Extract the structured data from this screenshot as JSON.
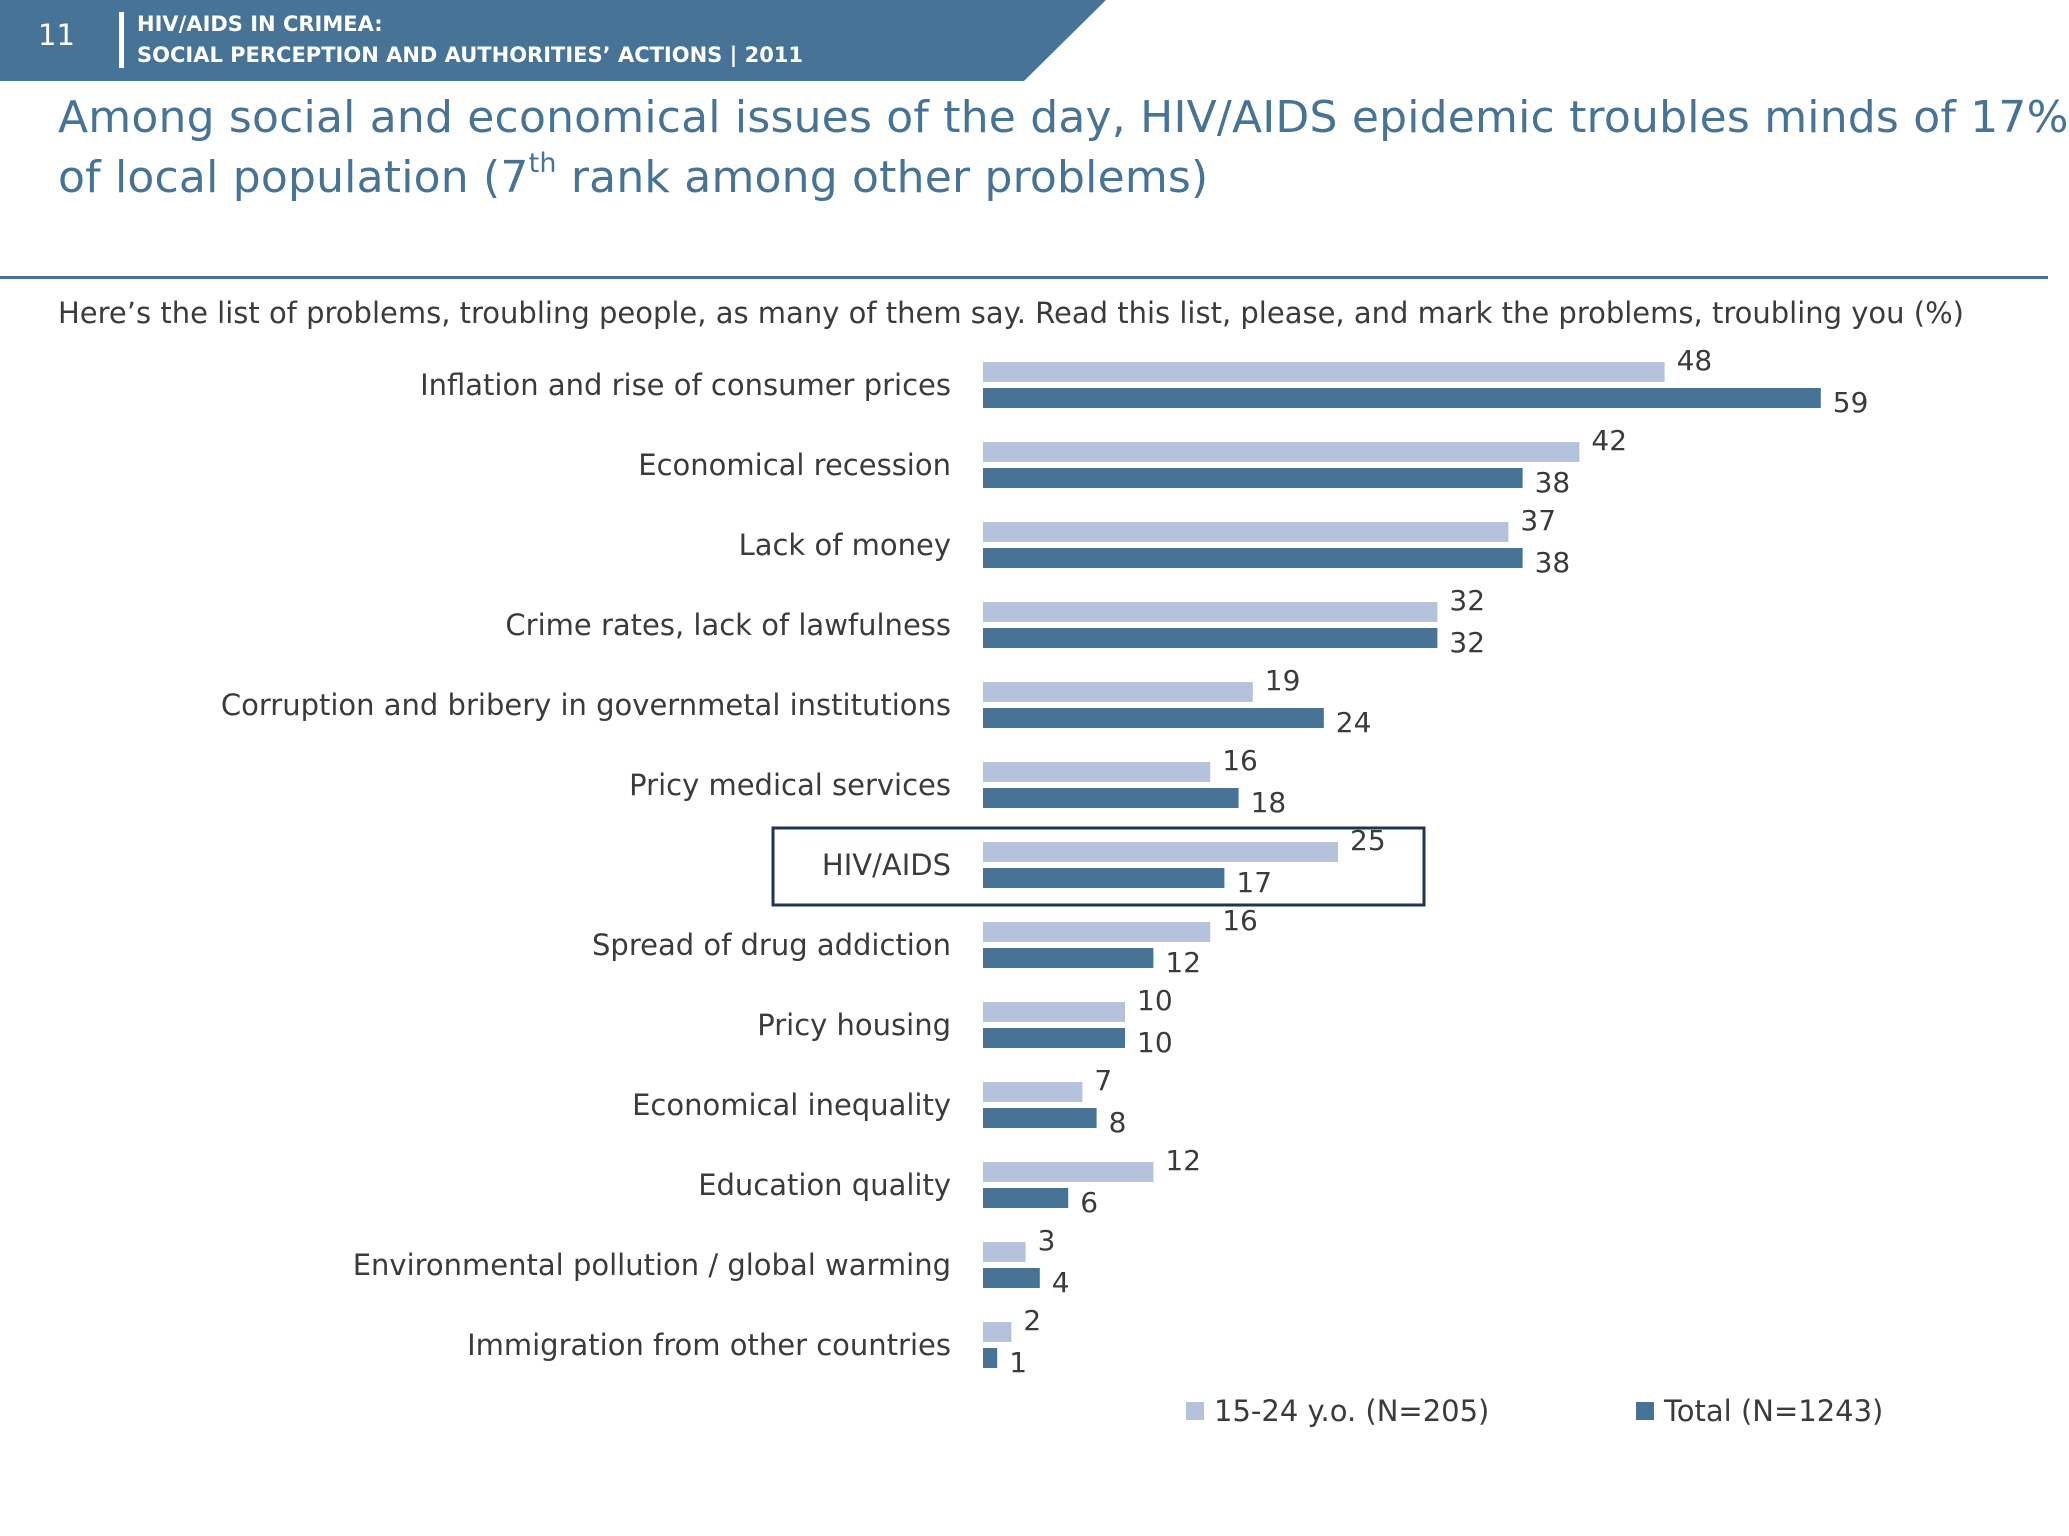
{
  "header": {
    "page_number": "11",
    "line1": "HIV/AIDS IN CRIMEA:",
    "line2": "SOCIAL PERCEPTION AND AUTHORITIES’ ACTIONS  |  2011"
  },
  "title": {
    "line1": "Among social and economical issues of the day, HIV/AIDS epidemic troubles minds  of 17%",
    "line2_before": "of local population (7",
    "line2_sup": "th",
    "line2_after": " rank among other problems)"
  },
  "question": "Here’s the list of problems, troubling people, as many of them say. Read this list, please, and mark the problems, troubling you (%)",
  "colors": {
    "header": "#477397",
    "series_young": "#b4c3db",
    "series_total": "#477397",
    "highlight_border": "#1f3550"
  },
  "chart_data": {
    "type": "bar",
    "orientation": "horizontal",
    "categories": [
      "Inflation and rise of consumer prices",
      "Economical recession",
      "Lack of money",
      "Crime rates, lack of lawfulness",
      "Corruption and bribery in governmetal institutions",
      "Pricy medical services",
      "HIV/AIDS",
      "Spread of drug addiction",
      "Pricy housing",
      "Economical inequality",
      "Education quality",
      "Environmental pollution / global warming",
      "Immigration from other countries"
    ],
    "series": [
      {
        "name": "15-24 y.o. (N=205)",
        "values": [
          48,
          42,
          37,
          32,
          19,
          16,
          25,
          16,
          10,
          7,
          12,
          3,
          2
        ]
      },
      {
        "name": "Total (N=1243)",
        "values": [
          59,
          38,
          38,
          32,
          24,
          18,
          17,
          12,
          10,
          8,
          6,
          4,
          1
        ]
      }
    ],
    "highlighted_category": "HIV/AIDS",
    "xlim": [
      0,
      60
    ],
    "grid": false,
    "legend_position": "bottom",
    "data_labels": true
  }
}
